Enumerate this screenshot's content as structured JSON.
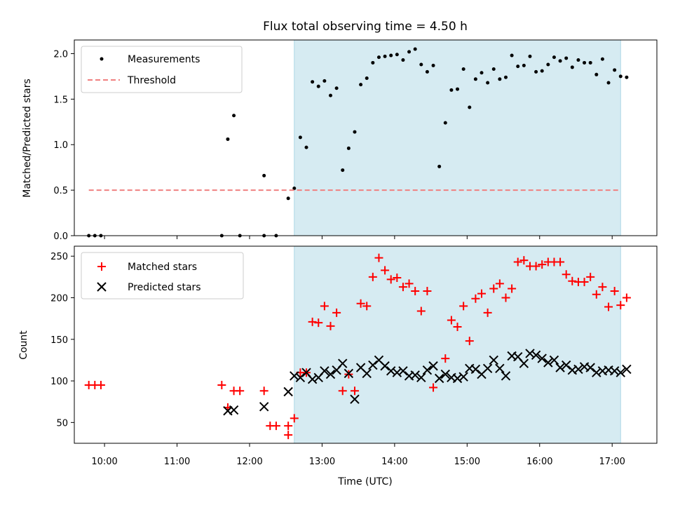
{
  "chart_data": {
    "title": "Flux total observing time = 4.50 h",
    "xlabel": "Time (UTC)",
    "x_tick_labels": [
      "10:00",
      "11:00",
      "12:00",
      "13:00",
      "14:00",
      "15:00",
      "16:00",
      "17:00"
    ],
    "x_ticks": [
      "10:00",
      "11:00",
      "12:00",
      "13:00",
      "14:00",
      "15:00",
      "16:00",
      "17:00"
    ],
    "xlim": [
      "09:35",
      "17:37"
    ],
    "highlight_span": {
      "start": "12:37",
      "end": "17:07",
      "color": "#add8e6"
    },
    "panels": [
      {
        "type": "scatter",
        "ylabel": "Matched/Predicted stars",
        "ylim": [
          0,
          2.15
        ],
        "y_ticks": [
          0.0,
          0.5,
          1.0,
          1.5,
          2.0
        ],
        "y_tick_labels": [
          "0.0",
          "0.5",
          "1.0",
          "1.5",
          "2.0"
        ],
        "legend": "top-left",
        "series": [
          {
            "name": "Measurements",
            "marker": "dot",
            "color": "#000000",
            "points": [
              [
                "09:47",
                0
              ],
              [
                "09:52",
                0
              ],
              [
                "09:57",
                0
              ],
              [
                "11:37",
                0
              ],
              [
                "11:52",
                0
              ],
              [
                "12:12",
                0
              ],
              [
                "12:22",
                0
              ],
              [
                "11:42",
                1.06
              ],
              [
                "11:47",
                1.32
              ],
              [
                "12:12",
                0.66
              ],
              [
                "12:32",
                0.41
              ],
              [
                "12:37",
                0.52
              ],
              [
                "12:42",
                1.08
              ],
              [
                "12:47",
                0.97
              ],
              [
                "12:52",
                1.69
              ],
              [
                "12:57",
                1.64
              ],
              [
                "13:02",
                1.7
              ],
              [
                "13:07",
                1.54
              ],
              [
                "13:12",
                1.62
              ],
              [
                "13:17",
                0.72
              ],
              [
                "13:22",
                0.96
              ],
              [
                "13:27",
                1.14
              ],
              [
                "13:32",
                1.66
              ],
              [
                "13:37",
                1.73
              ],
              [
                "13:42",
                1.9
              ],
              [
                "13:47",
                1.96
              ],
              [
                "13:52",
                1.97
              ],
              [
                "13:57",
                1.98
              ],
              [
                "14:02",
                1.99
              ],
              [
                "14:07",
                1.93
              ],
              [
                "14:12",
                2.02
              ],
              [
                "14:17",
                2.05
              ],
              [
                "14:22",
                1.88
              ],
              [
                "14:27",
                1.8
              ],
              [
                "14:32",
                1.87
              ],
              [
                "14:37",
                0.76
              ],
              [
                "14:42",
                1.24
              ],
              [
                "14:47",
                1.6
              ],
              [
                "14:52",
                1.61
              ],
              [
                "14:57",
                1.83
              ],
              [
                "15:02",
                1.41
              ],
              [
                "15:07",
                1.72
              ],
              [
                "15:12",
                1.79
              ],
              [
                "15:17",
                1.68
              ],
              [
                "15:22",
                1.83
              ],
              [
                "15:27",
                1.72
              ],
              [
                "15:32",
                1.74
              ],
              [
                "15:37",
                1.98
              ],
              [
                "15:42",
                1.86
              ],
              [
                "15:47",
                1.87
              ],
              [
                "15:52",
                1.97
              ],
              [
                "15:57",
                1.8
              ],
              [
                "16:02",
                1.81
              ],
              [
                "16:07",
                1.88
              ],
              [
                "16:12",
                1.96
              ],
              [
                "16:17",
                1.92
              ],
              [
                "16:22",
                1.95
              ],
              [
                "16:27",
                1.85
              ],
              [
                "16:32",
                1.93
              ],
              [
                "16:37",
                1.9
              ],
              [
                "16:42",
                1.9
              ],
              [
                "16:47",
                1.77
              ],
              [
                "16:52",
                1.94
              ],
              [
                "16:57",
                1.68
              ],
              [
                "17:02",
                1.82
              ],
              [
                "17:07",
                1.75
              ],
              [
                "17:12",
                1.74
              ]
            ]
          },
          {
            "name": "Threshold",
            "marker": "dashed-line",
            "color": "#f08080",
            "points": [
              [
                "09:47",
                0.5
              ],
              [
                "17:07",
                0.5
              ]
            ]
          }
        ]
      },
      {
        "type": "scatter",
        "ylabel": "Count",
        "ylim": [
          25,
          262
        ],
        "y_ticks": [
          50,
          100,
          150,
          200,
          250
        ],
        "y_tick_labels": [
          "50",
          "100",
          "150",
          "200",
          "250"
        ],
        "legend": "top-left",
        "series": [
          {
            "name": "Matched stars",
            "marker": "plus",
            "color": "#ff0000",
            "points": [
              [
                "09:47",
                95
              ],
              [
                "09:52",
                95
              ],
              [
                "09:57",
                95
              ],
              [
                "11:37",
                95
              ],
              [
                "11:42",
                68
              ],
              [
                "11:47",
                88
              ],
              [
                "11:52",
                88
              ],
              [
                "12:12",
                88
              ],
              [
                "12:17",
                46
              ],
              [
                "12:22",
                46
              ],
              [
                "12:32",
                46
              ],
              [
                "12:32",
                35
              ],
              [
                "12:37",
                55
              ],
              [
                "12:42",
                110
              ],
              [
                "12:47",
                110
              ],
              [
                "12:52",
                171
              ],
              [
                "12:57",
                170
              ],
              [
                "13:02",
                190
              ],
              [
                "13:07",
                166
              ],
              [
                "13:12",
                182
              ],
              [
                "13:17",
                88
              ],
              [
                "13:22",
                108
              ],
              [
                "13:27",
                88
              ],
              [
                "13:32",
                193
              ],
              [
                "13:37",
                190
              ],
              [
                "13:42",
                225
              ],
              [
                "13:47",
                248
              ],
              [
                "13:52",
                233
              ],
              [
                "13:57",
                222
              ],
              [
                "14:02",
                224
              ],
              [
                "14:07",
                213
              ],
              [
                "14:12",
                217
              ],
              [
                "14:17",
                208
              ],
              [
                "14:22",
                184
              ],
              [
                "14:27",
                208
              ],
              [
                "14:32",
                92
              ],
              [
                "14:42",
                127
              ],
              [
                "14:47",
                173
              ],
              [
                "14:52",
                165
              ],
              [
                "14:57",
                190
              ],
              [
                "15:02",
                148
              ],
              [
                "15:07",
                199
              ],
              [
                "15:12",
                205
              ],
              [
                "15:17",
                182
              ],
              [
                "15:22",
                211
              ],
              [
                "15:27",
                217
              ],
              [
                "15:32",
                200
              ],
              [
                "15:37",
                211
              ],
              [
                "15:42",
                243
              ],
              [
                "15:47",
                245
              ],
              [
                "15:52",
                238
              ],
              [
                "15:57",
                238
              ],
              [
                "16:02",
                240
              ],
              [
                "16:07",
                243
              ],
              [
                "16:12",
                243
              ],
              [
                "16:17",
                243
              ],
              [
                "16:22",
                228
              ],
              [
                "16:27",
                220
              ],
              [
                "16:32",
                219
              ],
              [
                "16:37",
                219
              ],
              [
                "16:42",
                225
              ],
              [
                "16:47",
                204
              ],
              [
                "16:52",
                213
              ],
              [
                "16:57",
                189
              ],
              [
                "17:02",
                208
              ],
              [
                "17:07",
                191
              ],
              [
                "17:12",
                200
              ]
            ]
          },
          {
            "name": "Predicted stars",
            "marker": "x",
            "color": "#000000",
            "points": [
              [
                "11:42",
                64
              ],
              [
                "11:47",
                65
              ],
              [
                "12:12",
                69
              ],
              [
                "12:32",
                87
              ],
              [
                "12:37",
                106
              ],
              [
                "12:42",
                104
              ],
              [
                "12:47",
                110
              ],
              [
                "12:52",
                102
              ],
              [
                "12:57",
                104
              ],
              [
                "13:02",
                112
              ],
              [
                "13:07",
                108
              ],
              [
                "13:12",
                113
              ],
              [
                "13:17",
                121
              ],
              [
                "13:22",
                109
              ],
              [
                "13:27",
                78
              ],
              [
                "13:32",
                116
              ],
              [
                "13:37",
                109
              ],
              [
                "13:42",
                119
              ],
              [
                "13:47",
                125
              ],
              [
                "13:52",
                118
              ],
              [
                "13:57",
                112
              ],
              [
                "14:02",
                110
              ],
              [
                "14:07",
                112
              ],
              [
                "14:12",
                106
              ],
              [
                "14:17",
                107
              ],
              [
                "14:22",
                104
              ],
              [
                "14:27",
                113
              ],
              [
                "14:32",
                118
              ],
              [
                "14:37",
                103
              ],
              [
                "14:42",
                108
              ],
              [
                "14:47",
                104
              ],
              [
                "14:52",
                103
              ],
              [
                "14:57",
                105
              ],
              [
                "15:02",
                115
              ],
              [
                "15:07",
                114
              ],
              [
                "15:12",
                108
              ],
              [
                "15:17",
                115
              ],
              [
                "15:22",
                125
              ],
              [
                "15:27",
                115
              ],
              [
                "15:32",
                106
              ],
              [
                "15:37",
                130
              ],
              [
                "15:42",
                129
              ],
              [
                "15:47",
                121
              ],
              [
                "15:52",
                133
              ],
              [
                "15:57",
                131
              ],
              [
                "16:02",
                127
              ],
              [
                "16:07",
                122
              ],
              [
                "16:12",
                125
              ],
              [
                "16:17",
                116
              ],
              [
                "16:22",
                119
              ],
              [
                "16:27",
                113
              ],
              [
                "16:32",
                114
              ],
              [
                "16:37",
                117
              ],
              [
                "16:42",
                116
              ],
              [
                "16:47",
                110
              ],
              [
                "16:52",
                112
              ],
              [
                "16:57",
                113
              ],
              [
                "17:02",
                112
              ],
              [
                "17:07",
                110
              ],
              [
                "17:12",
                114
              ]
            ]
          }
        ]
      }
    ]
  }
}
